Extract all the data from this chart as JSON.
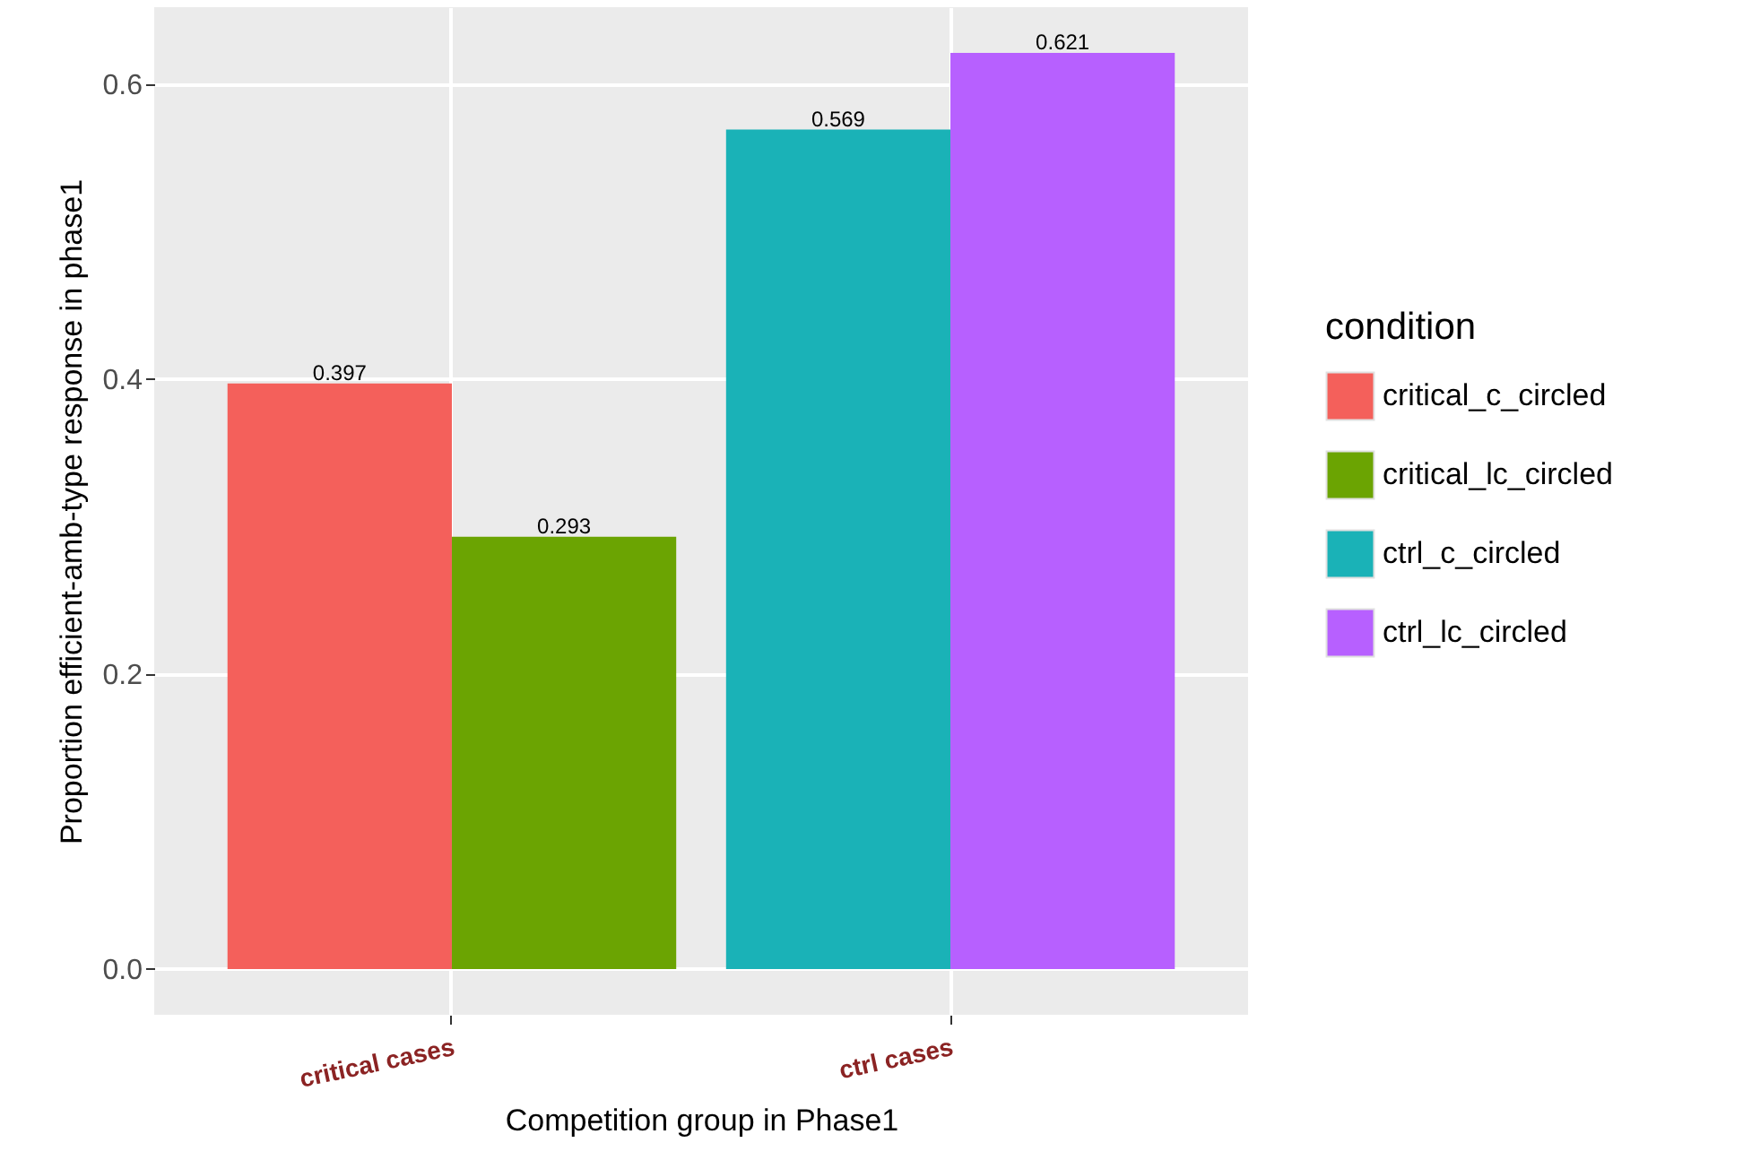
{
  "chart_data": {
    "type": "bar",
    "xlabel": "Competition group in Phase1",
    "ylabel": "Proportion efficient-amb-type response in phase1",
    "legend_title": "condition",
    "categories": [
      "critical cases",
      "ctrl cases"
    ],
    "series": [
      {
        "name": "critical_c_circled",
        "color": "#f4605b",
        "values": [
          0.397,
          null
        ]
      },
      {
        "name": "critical_lc_circled",
        "color": "#6ba402",
        "values": [
          0.293,
          null
        ]
      },
      {
        "name": "ctrl_c_circled",
        "color": "#1ab2b7",
        "values": [
          null,
          0.569
        ]
      },
      {
        "name": "ctrl_lc_circled",
        "color": "#b760ff",
        "values": [
          null,
          0.621
        ]
      }
    ],
    "ylim": [
      -0.031,
      0.652
    ],
    "yticks": [
      {
        "value": 0,
        "label": "0.0"
      },
      0.2,
      0.4,
      0.6
    ],
    "data_labels": true,
    "grid": true,
    "legend": "right"
  }
}
